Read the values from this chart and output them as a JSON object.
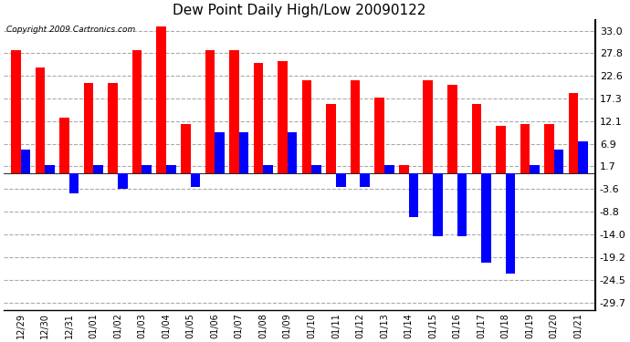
{
  "title": "Dew Point Daily High/Low 20090122",
  "copyright": "Copyright 2009 Cartronics.com",
  "labels": [
    "12/29",
    "12/30",
    "12/31",
    "01/01",
    "01/02",
    "01/03",
    "01/04",
    "01/05",
    "01/06",
    "01/07",
    "01/08",
    "01/09",
    "01/10",
    "01/11",
    "01/12",
    "01/13",
    "01/14",
    "01/15",
    "01/16",
    "01/17",
    "01/18",
    "01/19",
    "01/20",
    "01/21"
  ],
  "highs": [
    28.5,
    24.5,
    13.0,
    21.0,
    21.0,
    28.5,
    34.0,
    11.5,
    28.5,
    28.5,
    25.5,
    26.0,
    21.5,
    16.0,
    21.5,
    17.5,
    2.0,
    21.5,
    20.5,
    16.0,
    11.0,
    11.5,
    11.5,
    18.5
  ],
  "lows": [
    5.5,
    2.0,
    -4.5,
    2.0,
    -3.5,
    2.0,
    2.0,
    -3.0,
    9.5,
    9.5,
    2.0,
    9.5,
    2.0,
    -3.0,
    -3.0,
    2.0,
    -10.0,
    -14.5,
    -14.5,
    -20.5,
    -23.0,
    2.0,
    5.5,
    7.5
  ],
  "bar_width": 0.4,
  "high_color": "#ff0000",
  "low_color": "#0000ff",
  "bg_color": "#ffffff",
  "grid_color": "#aaaaaa",
  "yticks": [
    33.0,
    27.8,
    22.6,
    17.3,
    12.1,
    6.9,
    1.7,
    -3.6,
    -8.8,
    -14.0,
    -19.2,
    -24.5,
    -29.7
  ],
  "ylim": [
    -31.5,
    35.5
  ],
  "figsize": [
    6.9,
    3.75
  ],
  "dpi": 100
}
